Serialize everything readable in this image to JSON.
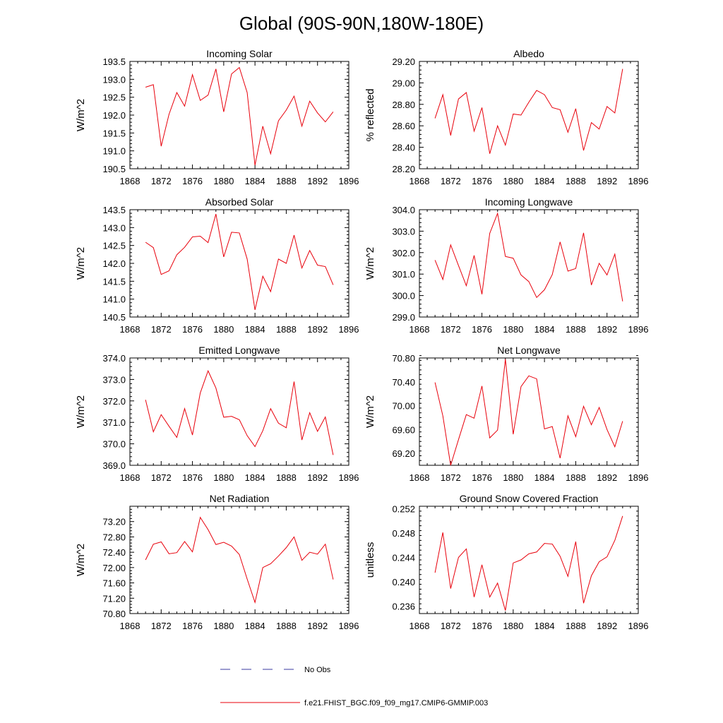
{
  "figure_title": "Global (90S-90N,180W-180E)",
  "line_color": "#e8000b",
  "obs_color": "#3a3aa0",
  "legend": {
    "obs_label": "No Obs",
    "model_label": "f.e21.FHIST_BGC.f09_f09_mg17.CMIP6-GMMIP.003"
  },
  "chart_data": [
    {
      "type": "line",
      "title": "Incoming Solar",
      "ylabel": "W/m^2",
      "xlim": [
        1868,
        1896
      ],
      "xticks": [
        "1868",
        "1872",
        "1876",
        "1880",
        "1884",
        "1888",
        "1892",
        "1896"
      ],
      "ylim": [
        190.5,
        193.5
      ],
      "yticks": [
        "190.5",
        "191.0",
        "191.5",
        "192.0",
        "192.5",
        "193.0",
        "193.5"
      ],
      "x": [
        1870,
        1871,
        1872,
        1873,
        1874,
        1875,
        1876,
        1877,
        1878,
        1879,
        1880,
        1881,
        1882,
        1883,
        1884,
        1885,
        1886,
        1887,
        1888,
        1889,
        1890,
        1891,
        1892,
        1893,
        1894
      ],
      "y": [
        192.78,
        192.85,
        191.13,
        192.02,
        192.63,
        192.25,
        193.13,
        192.41,
        192.56,
        193.29,
        192.09,
        193.15,
        193.33,
        192.63,
        190.6,
        191.69,
        190.92,
        191.84,
        192.14,
        192.53,
        191.69,
        192.39,
        192.06,
        191.81,
        192.09
      ]
    },
    {
      "type": "line",
      "title": "Albedo",
      "ylabel": "% reflected",
      "xlim": [
        1868,
        1896
      ],
      "xticks": [
        "1868",
        "1872",
        "1876",
        "1880",
        "1884",
        "1888",
        "1892",
        "1896"
      ],
      "ylim": [
        28.2,
        29.2
      ],
      "yticks": [
        "28.20",
        "28.40",
        "28.60",
        "28.80",
        "29.00",
        "29.20"
      ],
      "x": [
        1870,
        1871,
        1872,
        1873,
        1874,
        1875,
        1876,
        1877,
        1878,
        1879,
        1880,
        1881,
        1882,
        1883,
        1884,
        1885,
        1886,
        1887,
        1888,
        1889,
        1890,
        1891,
        1892,
        1893,
        1894
      ],
      "y": [
        28.67,
        28.89,
        28.51,
        28.85,
        28.91,
        28.55,
        28.77,
        28.34,
        28.6,
        28.42,
        28.71,
        28.7,
        28.82,
        28.93,
        28.89,
        28.77,
        28.75,
        28.54,
        28.76,
        28.37,
        28.63,
        28.57,
        28.78,
        28.72,
        29.13
      ]
    },
    {
      "type": "line",
      "title": "Absorbed Solar",
      "ylabel": "W/m^2",
      "xlim": [
        1868,
        1896
      ],
      "xticks": [
        "1868",
        "1872",
        "1876",
        "1880",
        "1884",
        "1888",
        "1892",
        "1896"
      ],
      "ylim": [
        140.5,
        143.5
      ],
      "yticks": [
        "140.5",
        "141.0",
        "141.5",
        "142.0",
        "142.5",
        "143.0",
        "143.5"
      ],
      "x": [
        1870,
        1871,
        1872,
        1873,
        1874,
        1875,
        1876,
        1877,
        1878,
        1879,
        1880,
        1881,
        1882,
        1883,
        1884,
        1885,
        1886,
        1887,
        1888,
        1889,
        1890,
        1891,
        1892,
        1893,
        1894
      ],
      "y": [
        142.59,
        142.44,
        141.69,
        141.79,
        142.24,
        142.45,
        142.74,
        142.76,
        142.58,
        143.38,
        142.18,
        142.87,
        142.85,
        142.12,
        140.7,
        141.64,
        141.21,
        142.12,
        142.0,
        142.79,
        141.87,
        142.36,
        141.95,
        141.91,
        141.4
      ]
    },
    {
      "type": "line",
      "title": "Incoming Longwave",
      "ylabel": "W/m^2",
      "xlim": [
        1868,
        1896
      ],
      "xticks": [
        "1868",
        "1872",
        "1876",
        "1880",
        "1884",
        "1888",
        "1892",
        "1896"
      ],
      "ylim": [
        299.0,
        304.0
      ],
      "yticks": [
        "299.0",
        "300.0",
        "301.0",
        "302.0",
        "303.0",
        "304.0"
      ],
      "x": [
        1870,
        1871,
        1872,
        1873,
        1874,
        1875,
        1876,
        1877,
        1878,
        1879,
        1880,
        1881,
        1882,
        1883,
        1884,
        1885,
        1886,
        1887,
        1888,
        1889,
        1890,
        1891,
        1892,
        1893,
        1894
      ],
      "y": [
        301.65,
        300.75,
        302.36,
        301.4,
        300.46,
        301.87,
        300.06,
        302.9,
        303.83,
        301.82,
        301.74,
        300.96,
        300.65,
        299.91,
        300.27,
        300.98,
        302.5,
        301.14,
        301.26,
        302.92,
        300.49,
        301.5,
        300.96,
        301.93,
        299.73
      ]
    },
    {
      "type": "line",
      "title": "Emitted Longwave",
      "ylabel": "W/m^2",
      "xlim": [
        1868,
        1896
      ],
      "xticks": [
        "1868",
        "1872",
        "1876",
        "1880",
        "1884",
        "1888",
        "1892",
        "1896"
      ],
      "ylim": [
        369.0,
        374.0
      ],
      "yticks": [
        "369.0",
        "370.0",
        "371.0",
        "372.0",
        "373.0",
        "374.0"
      ],
      "x": [
        1870,
        1871,
        1872,
        1873,
        1874,
        1875,
        1876,
        1877,
        1878,
        1879,
        1880,
        1881,
        1882,
        1883,
        1884,
        1885,
        1886,
        1887,
        1888,
        1889,
        1890,
        1891,
        1892,
        1893,
        1894
      ],
      "y": [
        372.05,
        370.56,
        371.36,
        370.82,
        370.3,
        371.64,
        370.41,
        372.37,
        373.4,
        372.6,
        371.24,
        371.28,
        371.12,
        370.38,
        369.87,
        370.61,
        371.64,
        370.96,
        370.75,
        372.9,
        370.18,
        371.45,
        370.58,
        371.25,
        369.48
      ]
    },
    {
      "type": "line",
      "title": "Net Longwave",
      "ylabel": "W/m^2",
      "xlim": [
        1868,
        1896
      ],
      "xticks": [
        "1868",
        "1872",
        "1876",
        "1880",
        "1884",
        "1888",
        "1892",
        "1896"
      ],
      "ylim": [
        69.0,
        70.8
      ],
      "yticks": [
        "69.20",
        "69.60",
        "70.00",
        "70.40",
        "70.80"
      ],
      "x": [
        1870,
        1871,
        1872,
        1873,
        1874,
        1875,
        1876,
        1877,
        1878,
        1879,
        1880,
        1881,
        1882,
        1883,
        1884,
        1885,
        1886,
        1887,
        1888,
        1889,
        1890,
        1891,
        1892,
        1893,
        1894
      ],
      "y": [
        70.39,
        69.83,
        69.0,
        69.43,
        69.85,
        69.79,
        70.33,
        69.46,
        69.59,
        70.78,
        69.52,
        70.32,
        70.5,
        70.45,
        69.61,
        69.65,
        69.12,
        69.83,
        69.48,
        69.99,
        69.68,
        69.97,
        69.6,
        69.31,
        69.74
      ]
    },
    {
      "type": "line",
      "title": "Net Radiation",
      "ylabel": "W/m^2",
      "xlim": [
        1868,
        1896
      ],
      "xticks": [
        "1868",
        "1872",
        "1876",
        "1880",
        "1884",
        "1888",
        "1892",
        "1896"
      ],
      "ylim": [
        70.8,
        73.6
      ],
      "yticks": [
        "70.80",
        "71.20",
        "71.60",
        "72.00",
        "72.40",
        "72.80",
        "73.20"
      ],
      "x": [
        1870,
        1871,
        1872,
        1873,
        1874,
        1875,
        1876,
        1877,
        1878,
        1879,
        1880,
        1881,
        1882,
        1883,
        1884,
        1885,
        1886,
        1887,
        1888,
        1889,
        1890,
        1891,
        1892,
        1893,
        1894
      ],
      "y": [
        72.2,
        72.61,
        72.67,
        72.36,
        72.39,
        72.68,
        72.41,
        73.31,
        72.99,
        72.6,
        72.66,
        72.56,
        72.34,
        71.7,
        71.09,
        72.0,
        72.1,
        72.3,
        72.52,
        72.8,
        72.19,
        72.4,
        72.35,
        72.61,
        71.69
      ]
    },
    {
      "type": "line",
      "title": "Ground Snow Covered Fraction",
      "ylabel": "unitless",
      "xlim": [
        1868,
        1896
      ],
      "xticks": [
        "1868",
        "1872",
        "1876",
        "1880",
        "1884",
        "1888",
        "1892",
        "1896"
      ],
      "ylim": [
        0.2348,
        0.2524
      ],
      "yticks": [
        "0.236",
        "0.240",
        "0.244",
        "0.248",
        "0.252"
      ],
      "x": [
        1870,
        1871,
        1872,
        1873,
        1874,
        1875,
        1876,
        1877,
        1878,
        1879,
        1880,
        1881,
        1882,
        1883,
        1884,
        1885,
        1886,
        1887,
        1888,
        1889,
        1890,
        1891,
        1892,
        1893,
        1894
      ],
      "y": [
        0.2415,
        0.2481,
        0.2389,
        0.244,
        0.2454,
        0.2375,
        0.2428,
        0.2375,
        0.2398,
        0.2353,
        0.2431,
        0.2436,
        0.2446,
        0.2449,
        0.2463,
        0.2462,
        0.2442,
        0.2409,
        0.2466,
        0.2365,
        0.241,
        0.2433,
        0.2441,
        0.2468,
        0.2508
      ]
    }
  ]
}
